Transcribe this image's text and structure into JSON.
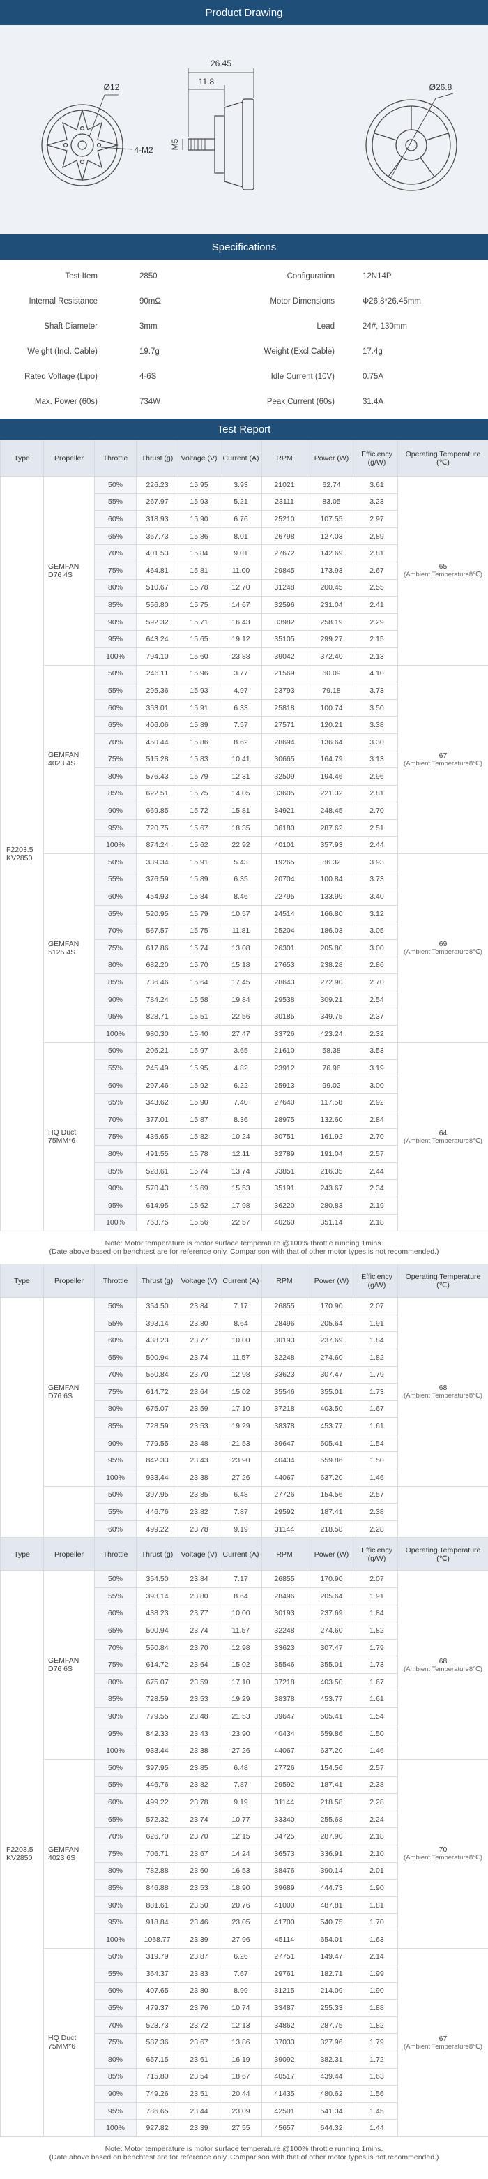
{
  "sections": {
    "drawing": "Product Drawing",
    "specifications": "Specifications",
    "test_report": "Test Report"
  },
  "drawing": {
    "dims": [
      "26.45",
      "11.8",
      "Ø12",
      "4-M2",
      "M5",
      "Ø26.8"
    ]
  },
  "specs": [
    [
      "Test Item",
      "2850",
      "Configuration",
      "12N14P"
    ],
    [
      "Internal Resistance",
      "90mΩ",
      "Motor Dimensions",
      "Φ26.8*26.45mm"
    ],
    [
      "Shaft Diameter",
      "3mm",
      "Lead",
      "24#,   130mm"
    ],
    [
      "Weight (Incl. Cable)",
      "19.7g",
      "Weight (Excl.Cable)",
      "17.4g"
    ],
    [
      "Rated Voltage (Lipo)",
      "4-6S",
      "Idle Current (10V)",
      "0.75A"
    ],
    [
      "Max. Power (60s)",
      "734W",
      "Peak Current (60s)",
      "31.4A"
    ]
  ],
  "columns": [
    "Type",
    "Propeller",
    "Throttle",
    "Thrust (g)",
    "Voltage (V)",
    "Current (A)",
    "RPM",
    "Power (W)",
    "Efficiency (g/W)",
    "Operating Temperature (℃)"
  ],
  "notes": [
    "Note: Motor temperature is motor surface temperature @100% throttle running 1mins.",
    "(Date above based on benchtest are for reference only. Comparison with that of other motor types is not recommended.)"
  ],
  "tables": [
    {
      "type": "F2203.5 KV2850",
      "groups": [
        {
          "propeller": "GEMFAN D76 4S",
          "temperature": "65",
          "temp_note": "(Ambient Temperature8℃)",
          "rows": [
            [
              "50%",
              "226.23",
              "15.95",
              "3.93",
              "21021",
              "62.74",
              "3.61"
            ],
            [
              "55%",
              "267.97",
              "15.93",
              "5.21",
              "23111",
              "83.05",
              "3.23"
            ],
            [
              "60%",
              "318.93",
              "15.90",
              "6.76",
              "25210",
              "107.55",
              "2.97"
            ],
            [
              "65%",
              "367.73",
              "15.86",
              "8.01",
              "26798",
              "127.03",
              "2.89"
            ],
            [
              "70%",
              "401.53",
              "15.84",
              "9.01",
              "27672",
              "142.69",
              "2.81"
            ],
            [
              "75%",
              "464.81",
              "15.81",
              "11.00",
              "29845",
              "173.93",
              "2.67"
            ],
            [
              "80%",
              "510.67",
              "15.78",
              "12.70",
              "31248",
              "200.45",
              "2.55"
            ],
            [
              "85%",
              "556.80",
              "15.75",
              "14.67",
              "32596",
              "231.04",
              "2.41"
            ],
            [
              "90%",
              "592.32",
              "15.71",
              "16.43",
              "33982",
              "258.19",
              "2.29"
            ],
            [
              "95%",
              "643.24",
              "15.65",
              "19.12",
              "35105",
              "299.27",
              "2.15"
            ],
            [
              "100%",
              "794.10",
              "15.60",
              "23.88",
              "39042",
              "372.40",
              "2.13"
            ]
          ]
        },
        {
          "propeller": "GEMFAN 4023 4S",
          "temperature": "67",
          "temp_note": "(Ambient Temperature8℃)",
          "rows": [
            [
              "50%",
              "246.11",
              "15.96",
              "3.77",
              "21569",
              "60.09",
              "4.10"
            ],
            [
              "55%",
              "295.36",
              "15.93",
              "4.97",
              "23793",
              "79.18",
              "3.73"
            ],
            [
              "60%",
              "353.01",
              "15.91",
              "6.33",
              "25818",
              "100.74",
              "3.50"
            ],
            [
              "65%",
              "406.06",
              "15.89",
              "7.57",
              "27571",
              "120.21",
              "3.38"
            ],
            [
              "70%",
              "450.44",
              "15.86",
              "8.62",
              "28694",
              "136.64",
              "3.30"
            ],
            [
              "75%",
              "515.28",
              "15.83",
              "10.41",
              "30665",
              "164.79",
              "3.13"
            ],
            [
              "80%",
              "576.43",
              "15.79",
              "12.31",
              "32509",
              "194.46",
              "2.96"
            ],
            [
              "85%",
              "622.51",
              "15.75",
              "14.05",
              "33605",
              "221.32",
              "2.81"
            ],
            [
              "90%",
              "669.85",
              "15.72",
              "15.81",
              "34921",
              "248.45",
              "2.70"
            ],
            [
              "95%",
              "720.75",
              "15.67",
              "18.35",
              "36180",
              "287.62",
              "2.51"
            ],
            [
              "100%",
              "874.24",
              "15.62",
              "22.92",
              "40101",
              "357.93",
              "2.44"
            ]
          ]
        },
        {
          "propeller": "GEMFAN 5125 4S",
          "temperature": "69",
          "temp_note": "(Ambient Temperature8℃)",
          "rows": [
            [
              "50%",
              "339.34",
              "15.91",
              "5.43",
              "19265",
              "86.32",
              "3.93"
            ],
            [
              "55%",
              "376.59",
              "15.89",
              "6.35",
              "20704",
              "100.84",
              "3.73"
            ],
            [
              "60%",
              "454.93",
              "15.84",
              "8.46",
              "22795",
              "133.99",
              "3.40"
            ],
            [
              "65%",
              "520.95",
              "15.79",
              "10.57",
              "24514",
              "166.80",
              "3.12"
            ],
            [
              "70%",
              "567.57",
              "15.75",
              "11.81",
              "25204",
              "186.03",
              "3.05"
            ],
            [
              "75%",
              "617.86",
              "15.74",
              "13.08",
              "26301",
              "205.80",
              "3.00"
            ],
            [
              "80%",
              "682.20",
              "15.70",
              "15.18",
              "27653",
              "238.28",
              "2.86"
            ],
            [
              "85%",
              "736.46",
              "15.64",
              "17.45",
              "28643",
              "272.90",
              "2.70"
            ],
            [
              "90%",
              "784.24",
              "15.58",
              "19.84",
              "29538",
              "309.21",
              "2.54"
            ],
            [
              "95%",
              "828.71",
              "15.51",
              "22.56",
              "30185",
              "349.75",
              "2.37"
            ],
            [
              "100%",
              "980.30",
              "15.40",
              "27.47",
              "33726",
              "423.24",
              "2.32"
            ]
          ]
        },
        {
          "propeller": "HQ Duct 75MM*6",
          "temperature": "64",
          "temp_note": "(Ambient Temperature8℃)",
          "rows": [
            [
              "50%",
              "206.21",
              "15.97",
              "3.65",
              "21610",
              "58.38",
              "3.53"
            ],
            [
              "55%",
              "245.49",
              "15.95",
              "4.82",
              "23912",
              "76.96",
              "3.19"
            ],
            [
              "60%",
              "297.46",
              "15.92",
              "6.22",
              "25913",
              "99.02",
              "3.00"
            ],
            [
              "65%",
              "343.62",
              "15.90",
              "7.40",
              "27640",
              "117.58",
              "2.92"
            ],
            [
              "70%",
              "377.01",
              "15.87",
              "8.36",
              "28975",
              "132.60",
              "2.84"
            ],
            [
              "75%",
              "436.65",
              "15.82",
              "10.24",
              "30751",
              "161.92",
              "2.70"
            ],
            [
              "80%",
              "491.55",
              "15.78",
              "12.11",
              "32789",
              "191.04",
              "2.57"
            ],
            [
              "85%",
              "528.61",
              "15.74",
              "13.74",
              "33851",
              "216.35",
              "2.44"
            ],
            [
              "90%",
              "570.43",
              "15.69",
              "15.53",
              "35191",
              "243.67",
              "2.34"
            ],
            [
              "95%",
              "614.95",
              "15.62",
              "17.98",
              "36220",
              "280.83",
              "2.19"
            ],
            [
              "100%",
              "763.75",
              "15.56",
              "22.57",
              "40260",
              "351.14",
              "2.18"
            ]
          ]
        }
      ]
    },
    {
      "groups": [
        {
          "propeller": "GEMFAN D76 6S",
          "temperature": "68",
          "temp_note": "(Ambient Temperature8℃)",
          "rows": [
            [
              "50%",
              "354.50",
              "23.84",
              "7.17",
              "26855",
              "170.90",
              "2.07"
            ],
            [
              "55%",
              "393.14",
              "23.80",
              "8.64",
              "28496",
              "205.64",
              "1.91"
            ],
            [
              "60%",
              "438.23",
              "23.77",
              "10.00",
              "30193",
              "237.69",
              "1.84"
            ],
            [
              "65%",
              "500.94",
              "23.74",
              "11.57",
              "32248",
              "274.60",
              "1.82"
            ],
            [
              "70%",
              "550.84",
              "23.70",
              "12.98",
              "33623",
              "307.47",
              "1.79"
            ],
            [
              "75%",
              "614.72",
              "23.64",
              "15.02",
              "35546",
              "355.01",
              "1.73"
            ],
            [
              "80%",
              "675.07",
              "23.59",
              "17.10",
              "37218",
              "403.50",
              "1.67"
            ],
            [
              "85%",
              "728.59",
              "23.53",
              "19.29",
              "38378",
              "453.77",
              "1.61"
            ],
            [
              "90%",
              "779.55",
              "23.48",
              "21.53",
              "39647",
              "505.41",
              "1.54"
            ],
            [
              "95%",
              "842.33",
              "23.43",
              "23.90",
              "40434",
              "559.86",
              "1.50"
            ],
            [
              "100%",
              "933.44",
              "23.38",
              "27.26",
              "44067",
              "637.20",
              "1.46"
            ]
          ]
        },
        {
          "rows": [
            [
              "50%",
              "397.95",
              "23.85",
              "6.48",
              "27726",
              "154.56",
              "2.57"
            ],
            [
              "55%",
              "446.76",
              "23.82",
              "7.87",
              "29592",
              "187.41",
              "2.38"
            ],
            [
              "60%",
              "499.22",
              "23.78",
              "9.19",
              "31144",
              "218.58",
              "2.28"
            ]
          ]
        }
      ]
    },
    {
      "type": "F2203.5 KV2850",
      "groups": [
        {
          "propeller": "GEMFAN D76 6S",
          "temperature": "68",
          "temp_note": "(Ambient Temperature8℃)",
          "rows": [
            [
              "50%",
              "354.50",
              "23.84",
              "7.17",
              "26855",
              "170.90",
              "2.07"
            ],
            [
              "55%",
              "393.14",
              "23.80",
              "8.64",
              "28496",
              "205.64",
              "1.91"
            ],
            [
              "60%",
              "438.23",
              "23.77",
              "10.00",
              "30193",
              "237.69",
              "1.84"
            ],
            [
              "65%",
              "500.94",
              "23.74",
              "11.57",
              "32248",
              "274.60",
              "1.82"
            ],
            [
              "70%",
              "550.84",
              "23.70",
              "12.98",
              "33623",
              "307.47",
              "1.79"
            ],
            [
              "75%",
              "614.72",
              "23.64",
              "15.02",
              "35546",
              "355.01",
              "1.73"
            ],
            [
              "80%",
              "675.07",
              "23.59",
              "17.10",
              "37218",
              "403.50",
              "1.67"
            ],
            [
              "85%",
              "728.59",
              "23.53",
              "19.29",
              "38378",
              "453.77",
              "1.61"
            ],
            [
              "90%",
              "779.55",
              "23.48",
              "21.53",
              "39647",
              "505.41",
              "1.54"
            ],
            [
              "95%",
              "842.33",
              "23.43",
              "23.90",
              "40434",
              "559.86",
              "1.50"
            ],
            [
              "100%",
              "933.44",
              "23.38",
              "27.26",
              "44067",
              "637.20",
              "1.46"
            ]
          ]
        },
        {
          "propeller": "GEMFAN 4023 6S",
          "temperature": "70",
          "temp_note": "(Ambient Temperature8℃)",
          "rows": [
            [
              "50%",
              "397.95",
              "23.85",
              "6.48",
              "27726",
              "154.56",
              "2.57"
            ],
            [
              "55%",
              "446.76",
              "23.82",
              "7.87",
              "29592",
              "187.41",
              "2.38"
            ],
            [
              "60%",
              "499.22",
              "23.78",
              "9.19",
              "31144",
              "218.58",
              "2.28"
            ],
            [
              "65%",
              "572.32",
              "23.74",
              "10.77",
              "33340",
              "255.68",
              "2.24"
            ],
            [
              "70%",
              "626.70",
              "23.70",
              "12.15",
              "34725",
              "287.90",
              "2.18"
            ],
            [
              "75%",
              "706.71",
              "23.67",
              "14.24",
              "36573",
              "336.91",
              "2.10"
            ],
            [
              "80%",
              "782.88",
              "23.60",
              "16.53",
              "38476",
              "390.14",
              "2.01"
            ],
            [
              "85%",
              "846.88",
              "23.53",
              "18.90",
              "39689",
              "444.73",
              "1.90"
            ],
            [
              "90%",
              "881.61",
              "23.50",
              "20.76",
              "41000",
              "487.81",
              "1.81"
            ],
            [
              "95%",
              "918.84",
              "23.46",
              "23.05",
              "41700",
              "540.75",
              "1.70"
            ],
            [
              "100%",
              "1068.77",
              "23.39",
              "27.96",
              "45114",
              "654.01",
              "1.63"
            ]
          ]
        },
        {
          "propeller": "HQ Duct 75MM*6",
          "temperature": "67",
          "temp_note": "(Ambient Temperature8℃)",
          "rows": [
            [
              "50%",
              "319.79",
              "23.87",
              "6.26",
              "27751",
              "149.47",
              "2.14"
            ],
            [
              "55%",
              "364.37",
              "23.83",
              "7.67",
              "29761",
              "182.71",
              "1.99"
            ],
            [
              "60%",
              "407.65",
              "23.80",
              "8.99",
              "31215",
              "214.09",
              "1.90"
            ],
            [
              "65%",
              "479.37",
              "23.76",
              "10.74",
              "33487",
              "255.33",
              "1.88"
            ],
            [
              "70%",
              "523.73",
              "23.72",
              "12.13",
              "34862",
              "287.75",
              "1.82"
            ],
            [
              "75%",
              "587.36",
              "23.67",
              "13.86",
              "37033",
              "327.96",
              "1.79"
            ],
            [
              "80%",
              "657.15",
              "23.61",
              "16.19",
              "39092",
              "382.31",
              "1.72"
            ],
            [
              "85%",
              "715.80",
              "23.54",
              "18.67",
              "40517",
              "439.44",
              "1.63"
            ],
            [
              "90%",
              "749.26",
              "23.51",
              "20.44",
              "41435",
              "480.62",
              "1.56"
            ],
            [
              "95%",
              "786.65",
              "23.44",
              "23.09",
              "42501",
              "541.34",
              "1.45"
            ],
            [
              "100%",
              "927.82",
              "23.39",
              "27.55",
              "45657",
              "644.32",
              "1.44"
            ]
          ]
        }
      ]
    }
  ]
}
